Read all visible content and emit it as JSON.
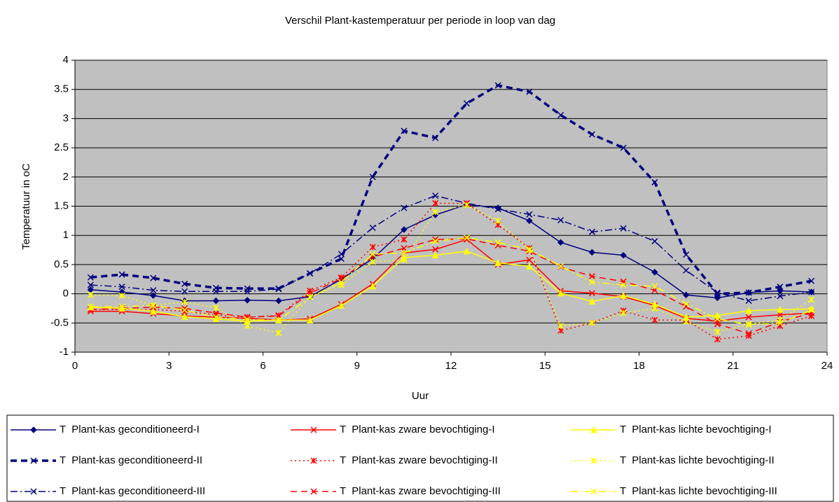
{
  "chart_data": {
    "type": "line",
    "title": "Verschil Plant-kastemperatuur per periode in loop van dag",
    "x_label": "Uur",
    "y_label": "Temperatuur in oC",
    "x": [
      0.5,
      1.5,
      2.5,
      3.5,
      4.5,
      5.5,
      6.5,
      7.5,
      8.5,
      9.5,
      10.5,
      11.5,
      12.5,
      13.5,
      14.5,
      15.5,
      16.5,
      17.5,
      18.5,
      19.5,
      20.5,
      21.5,
      22.5,
      23.5
    ],
    "xlim": [
      0,
      24
    ],
    "xticks": [
      0,
      3,
      6,
      9,
      12,
      15,
      18,
      21,
      24
    ],
    "ylim": [
      -1,
      4
    ],
    "yticks": [
      -1,
      -0.5,
      0,
      0.5,
      1,
      1.5,
      2,
      2.5,
      3,
      3.5,
      4
    ],
    "grid": true,
    "plot_background": "#c0c0c0",
    "legend_position": "bottom",
    "series": [
      {
        "name": "T  Plant-kas geconditioneerd-I",
        "color": "#000080",
        "line_style": "solid",
        "line_width": 1.5,
        "marker": "diamond",
        "values": [
          0.07,
          0.03,
          -0.03,
          -0.12,
          -0.12,
          -0.11,
          -0.12,
          -0.05,
          0.25,
          0.6,
          1.1,
          1.35,
          1.53,
          1.47,
          1.25,
          0.88,
          0.71,
          0.66,
          0.37,
          -0.02,
          -0.07,
          0.02,
          0.05,
          0.03
        ]
      },
      {
        "name": "T  Plant-kas geconditioneerd-II",
        "color": "#000080",
        "line_style": "dash",
        "line_width": 3.5,
        "marker": "x",
        "values": [
          0.28,
          0.33,
          0.27,
          0.17,
          0.1,
          0.09,
          0.09,
          0.35,
          0.6,
          2.0,
          2.79,
          2.67,
          3.26,
          3.57,
          3.46,
          3.06,
          2.73,
          2.5,
          1.91,
          0.67,
          0.0,
          0.02,
          0.12,
          0.22
        ]
      },
      {
        "name": "T  Plant-kas geconditioneerd-III",
        "color": "#000080",
        "line_style": "dashdot",
        "line_width": 1.5,
        "marker": "x",
        "values": [
          0.15,
          0.12,
          0.06,
          0.04,
          0.04,
          0.04,
          0.08,
          0.35,
          0.68,
          1.13,
          1.47,
          1.68,
          1.55,
          1.45,
          1.36,
          1.26,
          1.06,
          1.12,
          0.9,
          0.4,
          0.02,
          -0.12,
          -0.04,
          0.03
        ]
      },
      {
        "name": "T  Plant-kas zware bevochtiging-I",
        "color": "#ff0000",
        "line_style": "solid",
        "line_width": 1.5,
        "marker": "x",
        "values": [
          -0.3,
          -0.3,
          -0.34,
          -0.38,
          -0.4,
          -0.42,
          -0.45,
          -0.43,
          -0.18,
          0.17,
          0.7,
          0.76,
          0.93,
          0.5,
          0.58,
          0.05,
          0.01,
          -0.05,
          -0.2,
          -0.42,
          -0.47,
          -0.4,
          -0.36,
          -0.33
        ]
      },
      {
        "name": "T  Plant-kas zware bevochtiging-II",
        "color": "#ff0000",
        "line_style": "dot",
        "line_width": 1.5,
        "marker": "star",
        "values": [
          -0.27,
          -0.27,
          -0.27,
          -0.3,
          -0.36,
          -0.4,
          -0.37,
          0.05,
          0.28,
          0.8,
          0.93,
          1.55,
          1.55,
          1.18,
          0.78,
          -0.63,
          -0.5,
          -0.29,
          -0.45,
          -0.45,
          -0.78,
          -0.72,
          -0.55,
          -0.38
        ]
      },
      {
        "name": "T  Plant-kas zware bevochtiging-III",
        "color": "#ff0000",
        "line_style": "dash",
        "line_width": 1.5,
        "marker": "x",
        "values": [
          -0.27,
          -0.25,
          -0.23,
          -0.25,
          -0.33,
          -0.4,
          -0.38,
          0.01,
          0.26,
          0.63,
          0.78,
          0.93,
          0.94,
          0.83,
          0.73,
          0.46,
          0.3,
          0.21,
          0.06,
          -0.22,
          -0.52,
          -0.68,
          -0.48,
          -0.33
        ]
      },
      {
        "name": "T  Plant-kas lichte bevochtiging-I",
        "color": "#ffff00",
        "line_style": "solid",
        "line_width": 1.5,
        "marker": "triangle",
        "values": [
          -0.23,
          -0.25,
          -0.3,
          -0.39,
          -0.43,
          -0.47,
          -0.45,
          -0.45,
          -0.2,
          0.13,
          0.62,
          0.66,
          0.73,
          0.53,
          0.47,
          0.01,
          -0.13,
          -0.03,
          -0.18,
          -0.4,
          -0.37,
          -0.29,
          -0.27,
          -0.26
        ]
      },
      {
        "name": "T  Plant-kas lichte bevochtiging-II",
        "color": "#ffff00",
        "line_style": "dot",
        "line_width": 1.5,
        "marker": "star",
        "values": [
          -0.02,
          -0.03,
          -0.2,
          -0.14,
          -0.24,
          -0.55,
          -0.67,
          -0.05,
          0.15,
          0.55,
          0.58,
          1.4,
          1.52,
          1.25,
          0.75,
          -0.55,
          -0.5,
          -0.33,
          -0.25,
          -0.48,
          -0.65,
          -0.52,
          -0.45,
          -0.1
        ]
      },
      {
        "name": "T  Plant-kas lichte bevochtiging-III",
        "color": "#ffff00",
        "line_style": "dashdot",
        "line_width": 1.5,
        "marker": "x",
        "values": [
          -0.22,
          -0.22,
          -0.2,
          -0.28,
          -0.4,
          -0.44,
          -0.45,
          -0.06,
          0.2,
          0.68,
          0.7,
          0.9,
          0.96,
          0.88,
          0.76,
          0.47,
          0.2,
          0.15,
          0.13,
          -0.17,
          -0.43,
          -0.53,
          -0.5,
          -0.28
        ]
      }
    ]
  }
}
